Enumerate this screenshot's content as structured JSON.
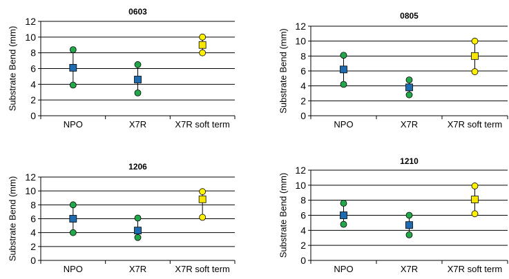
{
  "colors": {
    "min_max_green": "#22a84a",
    "min_max_yellow": "#fff200",
    "mean_blue": "#1e6bb0",
    "mean_yellow": "#f7e600",
    "gridline": "#000000"
  },
  "chart_data": [
    {
      "type": "scatter",
      "title": "0603",
      "ylabel": "Substrate Bend (mm)",
      "ylim": [
        0,
        12
      ],
      "yticks": [
        0,
        2,
        4,
        6,
        8,
        10,
        12
      ],
      "categories": [
        "NPO",
        "X7R",
        "X7R soft term"
      ],
      "series": [
        {
          "values": [
            8.4,
            6.5,
            10.0
          ]
        },
        {
          "values": [
            6.1,
            4.6,
            9.0
          ]
        },
        {
          "values": [
            3.9,
            2.9,
            8.0
          ]
        }
      ]
    },
    {
      "type": "scatter",
      "title": "0805",
      "ylabel": "Substrate Bend (mm)",
      "ylim": [
        0,
        12
      ],
      "yticks": [
        0,
        2,
        4,
        6,
        8,
        10,
        12
      ],
      "categories": [
        "NPO",
        "X7R",
        "X7R soft term"
      ],
      "series": [
        {
          "values": [
            8.1,
            4.8,
            10.0
          ]
        },
        {
          "values": [
            6.2,
            3.8,
            8.0
          ]
        },
        {
          "values": [
            4.2,
            2.8,
            5.9
          ]
        }
      ]
    },
    {
      "type": "scatter",
      "title": "1206",
      "ylabel": "Substrate Bend (mm)",
      "ylim": [
        0,
        12
      ],
      "yticks": [
        0,
        2,
        4,
        6,
        8,
        10,
        12
      ],
      "categories": [
        "NPO",
        "X7R",
        "X7R soft term"
      ],
      "series": [
        {
          "values": [
            8.0,
            6.1,
            9.9
          ]
        },
        {
          "values": [
            6.0,
            4.3,
            8.8
          ]
        },
        {
          "values": [
            4.0,
            3.3,
            6.2
          ]
        }
      ]
    },
    {
      "type": "scatter",
      "title": "1210",
      "ylabel": "Substrate Bend (mm)",
      "ylim": [
        0,
        12
      ],
      "yticks": [
        0,
        2,
        4,
        6,
        8,
        10,
        12
      ],
      "categories": [
        "NPO",
        "X7R",
        "X7R soft term"
      ],
      "series": [
        {
          "values": [
            7.6,
            6.0,
            9.9
          ]
        },
        {
          "values": [
            6.0,
            4.7,
            8.1
          ]
        },
        {
          "values": [
            4.8,
            3.4,
            6.2
          ]
        }
      ]
    }
  ]
}
